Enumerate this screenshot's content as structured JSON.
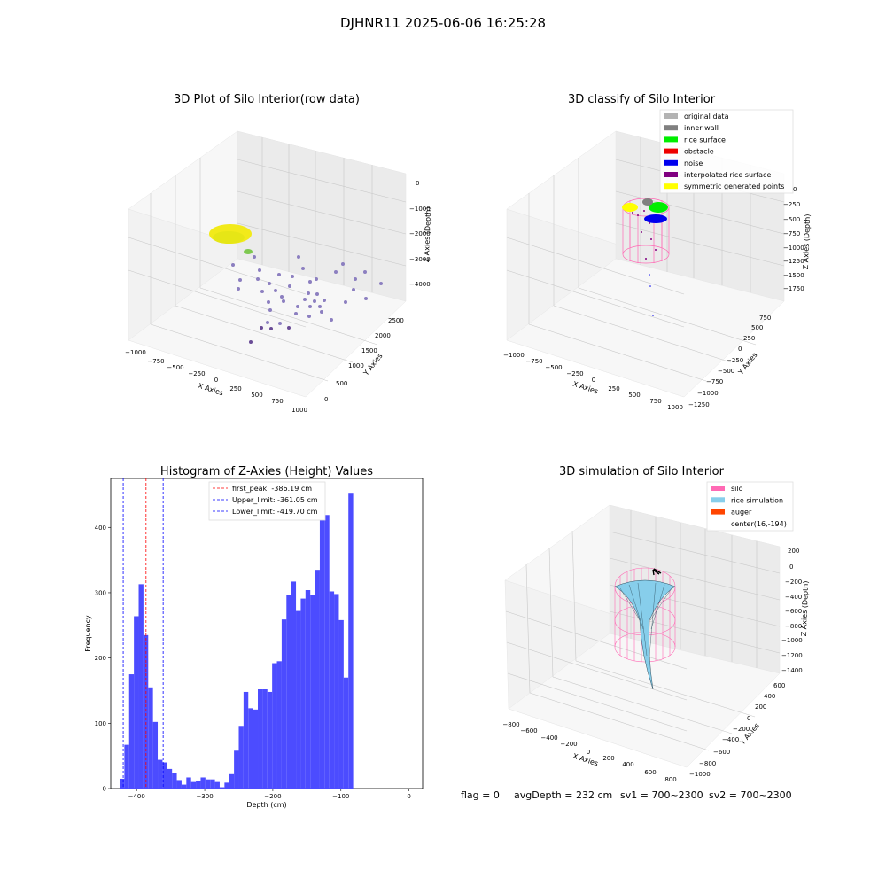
{
  "suptitle": "DJHNR11 2025-06-06 16:25:28",
  "panel_tl": {
    "title": "3D Plot of Silo Interior(row data)",
    "xlabel": "X Axies",
    "ylabel": "Y Axies",
    "zlabel": "Z Axies (Depth)",
    "x_ticks": [
      "−1000",
      "−750",
      "−500",
      "−250",
      "0",
      "250",
      "500",
      "750",
      "1000"
    ],
    "y_ticks": [
      "0",
      "500",
      "1000",
      "1500",
      "2000",
      "2500"
    ],
    "z_ticks": [
      "0",
      "−1000",
      "−2000",
      "−3000",
      "−4000"
    ]
  },
  "panel_tr": {
    "title": "3D classify of Silo Interior",
    "xlabel": "X Axies",
    "ylabel": "Y Axies",
    "zlabel": "Z Axies (Depth)",
    "x_ticks": [
      "−1000",
      "−750",
      "−500",
      "−250",
      "0",
      "250",
      "500",
      "750",
      "1000"
    ],
    "y_ticks": [
      "−1250",
      "−1000",
      "−750",
      "−500",
      "−250",
      "0",
      "250",
      "500",
      "750"
    ],
    "z_ticks": [
      "0",
      "−250",
      "−500",
      "−750",
      "−1000",
      "−1250",
      "−1500",
      "−1750"
    ],
    "legend": [
      {
        "label": "original data",
        "color": "#b3b3b3"
      },
      {
        "label": "inner wall",
        "color": "#808080"
      },
      {
        "label": "rice surface",
        "color": "#00ee00"
      },
      {
        "label": "obstacle",
        "color": "#ee0000"
      },
      {
        "label": "noise",
        "color": "#0000ee"
      },
      {
        "label": "interpolated rice surface",
        "color": "#800080"
      },
      {
        "label": "symmetric generated points",
        "color": "#ffff00"
      }
    ]
  },
  "panel_br": {
    "title": "3D simulation of Silo Interior",
    "xlabel": "X Axies",
    "ylabel": "Y Axies",
    "zlabel": "Z Axies (Depth)",
    "x_ticks": [
      "−800",
      "−600",
      "−400",
      "−200",
      "0",
      "200",
      "400",
      "600",
      "800"
    ],
    "y_ticks": [
      "−1000",
      "−800",
      "−600",
      "−400",
      "−200",
      "0",
      "200",
      "400",
      "600"
    ],
    "z_ticks": [
      "200",
      "0",
      "−200",
      "−400",
      "−600",
      "−800",
      "−1000",
      "−1200",
      "−1400"
    ],
    "legend": [
      {
        "label": "silo",
        "color": "#ff69b4"
      },
      {
        "label": "rice simulation",
        "color": "#87ceeb"
      },
      {
        "label": "auger",
        "color": "#ff4500"
      },
      {
        "label": "center(16,-194)",
        "color": ""
      }
    ]
  },
  "status": {
    "flag": "flag = 0",
    "avg": "avgDepth = 232 cm",
    "sv1": "sv1 = 700~2300",
    "sv2": "sv2 = 700~2300"
  },
  "chart_data": [
    {
      "type": "histogram",
      "title": "Histogram of Z-Axies (Height) Values",
      "xlabel": "Depth (cm)",
      "ylabel": "Frequency",
      "xlim": [
        -438,
        20
      ],
      "ylim": [
        0,
        475
      ],
      "xticks": [
        -400,
        -300,
        -200,
        -100,
        0
      ],
      "yticks": [
        0,
        100,
        200,
        300,
        400
      ],
      "bin_edges_start": -425,
      "bin_width": 7,
      "values": [
        15,
        67,
        175,
        264,
        313,
        235,
        155,
        102,
        44,
        40,
        30,
        24,
        13,
        6,
        17,
        10,
        12,
        17,
        14,
        14,
        10,
        2,
        9,
        22,
        58,
        96,
        148,
        123,
        121,
        152,
        152,
        148,
        192,
        195,
        259,
        296,
        317,
        272,
        291,
        304,
        296,
        335,
        447,
        419,
        302,
        298,
        258,
        170,
        453
      ],
      "vlines": [
        {
          "label": "first_peak: -386.19 cm",
          "x": -386.19,
          "color": "#ff0000"
        },
        {
          "label": "Upper_limit: -361.05 cm",
          "x": -361.05,
          "color": "#0000ff"
        },
        {
          "label": "Lower_limit: -419.70 cm",
          "x": -419.7,
          "color": "#0000ff"
        }
      ],
      "bar_color": "#4c4cff"
    }
  ]
}
